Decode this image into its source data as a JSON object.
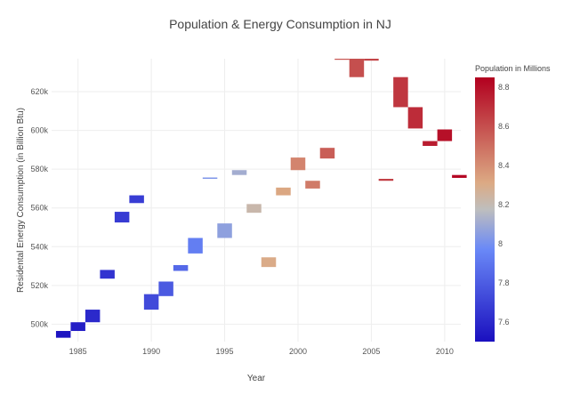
{
  "chart_data": {
    "type": "bar",
    "subtype": "floating-bar (base + height), colored by population",
    "title": "Population & Energy Consumption in NJ",
    "xlabel": "Year",
    "ylabel": "Residental Energy Consumption (in Billion Btu)",
    "xlim": [
      1983.2,
      2011.1
    ],
    "ylim": [
      491000,
      637000
    ],
    "x_ticks": [
      1985,
      1990,
      1995,
      2000,
      2005,
      2010
    ],
    "x_tick_labels": [
      "1985",
      "1990",
      "1995",
      "2000",
      "2005",
      "2010"
    ],
    "y_ticks": [
      500000,
      520000,
      540000,
      560000,
      580000,
      600000,
      620000
    ],
    "y_tick_labels": [
      "500k",
      "520k",
      "540k",
      "560k",
      "580k",
      "600k",
      "620k"
    ],
    "grid": true,
    "bar_width_years": 1,
    "points": [
      {
        "year": 1984,
        "base": 493000,
        "top": 496500,
        "population": 7.52
      },
      {
        "year": 1985,
        "base": 496500,
        "top": 501000,
        "population": 7.56
      },
      {
        "year": 1986,
        "base": 501000,
        "top": 507500,
        "population": 7.6
      },
      {
        "year": 1987,
        "base": 523500,
        "top": 528000,
        "population": 7.64
      },
      {
        "year": 1988,
        "base": 552500,
        "top": 558000,
        "population": 7.67
      },
      {
        "year": 1989,
        "base": 562500,
        "top": 566500,
        "population": 7.68
      },
      {
        "year": 1990,
        "base": 507500,
        "top": 515500,
        "population": 7.73
      },
      {
        "year": 1991,
        "base": 514500,
        "top": 522000,
        "population": 7.79
      },
      {
        "year": 1992,
        "base": 527500,
        "top": 530500,
        "population": 7.85
      },
      {
        "year": 1993,
        "base": 536500,
        "top": 544500,
        "population": 7.93
      },
      {
        "year": 1994,
        "base": 575000,
        "top": 575700,
        "population": 8.02
      },
      {
        "year": 1995,
        "base": 544500,
        "top": 552000,
        "population": 8.06
      },
      {
        "year": 1996,
        "base": 577000,
        "top": 579500,
        "population": 8.11
      },
      {
        "year": 1997,
        "base": 557500,
        "top": 562000,
        "population": 8.22
      },
      {
        "year": 1998,
        "base": 529500,
        "top": 534500,
        "population": 8.3
      },
      {
        "year": 1999,
        "base": 566500,
        "top": 570500,
        "population": 8.32
      },
      {
        "year": 2000,
        "base": 579500,
        "top": 586000,
        "population": 8.43
      },
      {
        "year": 2001,
        "base": 570000,
        "top": 574000,
        "population": 8.46
      },
      {
        "year": 2002,
        "base": 585500,
        "top": 591000,
        "population": 8.55
      },
      {
        "year": 2003,
        "base": 637000,
        "top": 637000,
        "population": 8.58
      },
      {
        "year": 2004,
        "base": 627500,
        "top": 637000,
        "population": 8.6
      },
      {
        "year": 2005,
        "base": 636000,
        "top": 637000,
        "population": 8.63
      },
      {
        "year": 2006,
        "base": 574000,
        "top": 575000,
        "population": 8.66
      },
      {
        "year": 2007,
        "base": 612000,
        "top": 627500,
        "population": 8.68
      },
      {
        "year": 2008,
        "base": 601000,
        "top": 612000,
        "population": 8.71
      },
      {
        "year": 2009,
        "base": 592000,
        "top": 594500,
        "population": 8.76
      },
      {
        "year": 2010,
        "base": 594500,
        "top": 600500,
        "population": 8.8
      },
      {
        "year": 2011,
        "base": 575500,
        "top": 577000,
        "population": 8.83
      }
    ],
    "colorbar": {
      "title": "Population in Millions",
      "range": [
        7.5,
        8.85
      ],
      "ticks": [
        7.6,
        7.8,
        8,
        8.2,
        8.4,
        8.6,
        8.8
      ],
      "tick_labels": [
        "7.6",
        "7.8",
        "8",
        "8.2",
        "8.4",
        "8.6",
        "8.8"
      ],
      "colorscale": [
        [
          0,
          "#1a0fbf"
        ],
        [
          0.35,
          "#6a89f7"
        ],
        [
          0.5,
          "#bebebe"
        ],
        [
          0.6,
          "#dcaa84"
        ],
        [
          1,
          "#b2001f"
        ]
      ]
    }
  }
}
